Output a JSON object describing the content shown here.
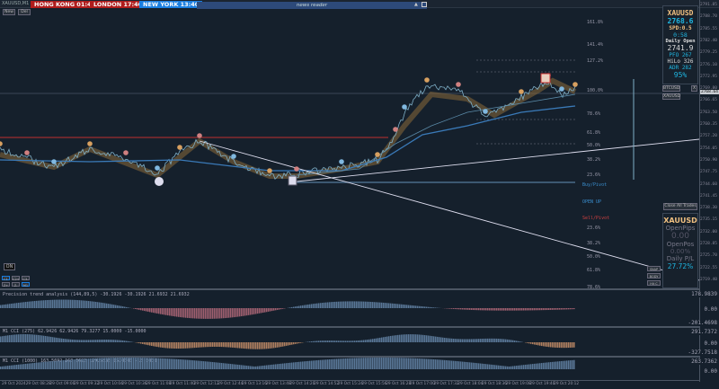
{
  "header": {
    "symbol": "XAUUSD,M1",
    "sessions": [
      {
        "name": "HONG KONG 01:40",
        "color": "#b01c1c"
      },
      {
        "name": "LONDON 17:40",
        "color": "#b01c1c"
      },
      {
        "name": "NEW YORK 13:40",
        "color": "#1a7ee0"
      }
    ],
    "news": "news reader",
    "new_btn": "New",
    "del_btn": "Del"
  },
  "fib_labels": [
    {
      "t": "161.8%"
    },
    {
      "t": "141.4%"
    },
    {
      "t": "127.2%"
    },
    {
      "t": "100.0%"
    },
    {
      "t": "78.6%"
    },
    {
      "t": "61.8%"
    },
    {
      "t": "50.0%"
    },
    {
      "t": "38.2%"
    },
    {
      "t": "23.6%"
    },
    {
      "t": "Buy/Pivot"
    },
    {
      "t": "OPEN UP"
    },
    {
      "t": "Sell/Pivot"
    },
    {
      "t": "23.6%"
    },
    {
      "t": "38.2%"
    },
    {
      "t": "50.0%"
    },
    {
      "t": "61.8%"
    },
    {
      "t": "78.6%"
    }
  ],
  "info": {
    "symbol": "XAUUSD",
    "price": "2768.6",
    "spread": "SPD:0.5",
    "timer": "0:58",
    "daily_open_label": "Daily Open",
    "daily_open": "2741.9",
    "pfo_label": "PFO",
    "pfo": "267",
    "hilo_label": "HiLo",
    "hilo": "326",
    "adr_label": "ADR",
    "adr": "282",
    "pct": "95%",
    "btc_btn": "BTCUSD",
    "xau_btn": "XAUUSD",
    "close_x": "X"
  },
  "trade_panel": {
    "close_all": "Close All Trades",
    "symbol": "XAUUSD",
    "open_pips_label": "OpenPips",
    "open_pips": "0.00",
    "open_pos_label": "OpenPos",
    "open_pos": "0.00%",
    "daily_pl_label": "Daily P/L",
    "daily_pl": "27.72%"
  },
  "side_buttons": [
    "SNAP",
    "BODY",
    "Hit C"
  ],
  "left_controls": {
    "on": "ON",
    "row1": [
      "C1",
      "C2+",
      "C3-"
    ],
    "row2": [
      "Z+",
      "Z-",
      "M1"
    ]
  },
  "price_axis": [
    "2791.85",
    "2788.70",
    "2785.55",
    "2782.40",
    "2779.25",
    "2776.10",
    "2772.95",
    "2769.80",
    "2766.65",
    "2763.50",
    "2760.35",
    "2757.20",
    "2754.05",
    "2750.90",
    "2747.75",
    "2744.60",
    "2741.45",
    "2738.30",
    "2735.15",
    "2732.00",
    "2728.85",
    "2725.70",
    "2722.55",
    "2719.40"
  ],
  "current_price": "2768.64",
  "indicators": [
    {
      "title": "Precision trend analysis (144,89,5) -30.1926 -30.1926 21.6932 21.6932",
      "axis": [
        "178.9839",
        "0.00"
      ]
    },
    {
      "title": "M1 CCI (275) 62.9426 62.9426 79.3277 15.0000 -15.0000",
      "axis": [
        "-201.4698",
        "291.7372",
        "0.00"
      ]
    },
    {
      "title": "M1 CCI (1000) 163.5692 163.5692 179.5836 15.0000 -15.0000",
      "axis": [
        "-327.7518",
        "263.7362",
        "0.00"
      ]
    }
  ],
  "time_axis": [
    "29 Oct 2024",
    "29 Oct 08:28",
    "29 Oct 09:00",
    "29 Oct 09:32",
    "29 Oct 10:04",
    "29 Oct 10:36",
    "29 Oct 11:08",
    "29 Oct 11:40",
    "29 Oct 12:12",
    "29 Oct 12:44",
    "29 Oct 13:16",
    "29 Oct 13:48",
    "29 Oct 14:20",
    "29 Oct 14:52",
    "29 Oct 15:24",
    "29 Oct 15:56",
    "29 Oct 16:28",
    "29 Oct 17:00",
    "29 Oct 17:32",
    "29 Oct 18:04",
    "29 Oct 18:36",
    "29 Oct 19:08",
    "29 Oct 19:40",
    "29 Oct 20:12"
  ],
  "colors": {
    "bg": "#15202c",
    "accent": "#1fb5e0",
    "title": "#f0c080",
    "sell": "#d04040",
    "buy": "#3a8fd0"
  }
}
